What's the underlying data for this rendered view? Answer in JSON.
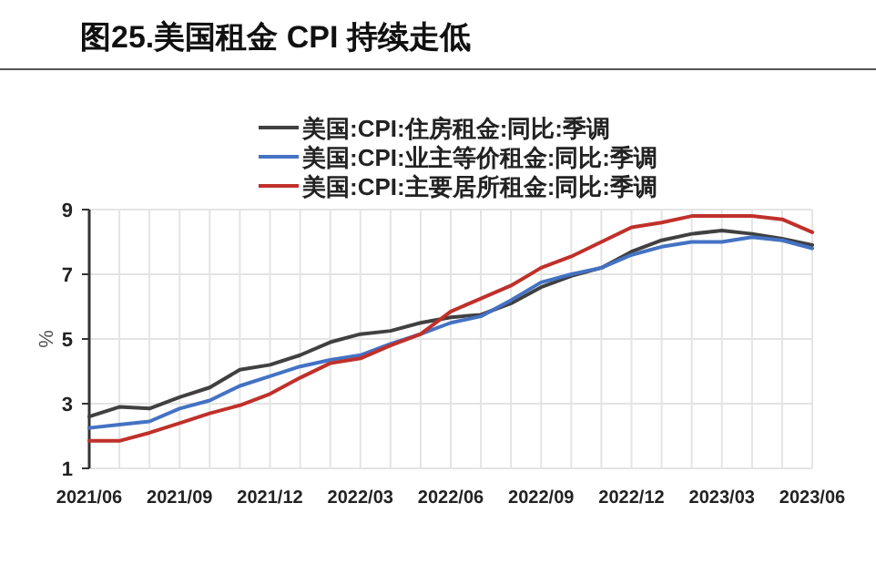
{
  "chart_data": {
    "type": "line",
    "title": "图25.美国租金 CPI 持续走低",
    "ylabel": "%",
    "categories": [
      "2021/06",
      null,
      null,
      "2021/09",
      null,
      null,
      "2021/12",
      null,
      null,
      "2022/03",
      null,
      null,
      "2022/06",
      null,
      null,
      "2022/09",
      null,
      null,
      "2022/12",
      null,
      null,
      "2023/03",
      null,
      null,
      "2023/06"
    ],
    "series": [
      {
        "name": "美国:CPI:住房租金:同比:季调",
        "color": "#404040",
        "values": [
          2.6,
          2.9,
          2.85,
          3.2,
          3.5,
          4.05,
          4.2,
          4.5,
          4.9,
          5.15,
          5.25,
          5.5,
          5.67,
          5.75,
          6.1,
          6.6,
          6.95,
          7.2,
          7.7,
          8.05,
          8.25,
          8.35,
          8.25,
          8.1,
          7.9
        ]
      },
      {
        "name": "美国:CPI:业主等价租金:同比:季调",
        "color": "#4472c4",
        "values": [
          2.25,
          2.35,
          2.45,
          2.85,
          3.1,
          3.55,
          3.85,
          4.15,
          4.35,
          4.5,
          4.85,
          5.15,
          5.5,
          5.7,
          6.2,
          6.75,
          7.0,
          7.2,
          7.6,
          7.85,
          8.0,
          8.0,
          8.15,
          8.05,
          7.8
        ]
      },
      {
        "name": "美国:CPI:主要居所租金:同比:季调",
        "color": "#c0302a",
        "values": [
          1.85,
          1.85,
          2.1,
          2.4,
          2.7,
          2.95,
          3.3,
          3.8,
          4.25,
          4.4,
          4.8,
          5.15,
          5.85,
          6.25,
          6.65,
          7.2,
          7.55,
          8.0,
          8.45,
          8.6,
          8.8,
          8.8,
          8.8,
          8.7,
          8.3
        ]
      }
    ],
    "ylim": [
      1,
      9
    ],
    "yticks": [
      1,
      3,
      5,
      7,
      9
    ],
    "grid": true,
    "legend": "top",
    "marker": "none",
    "line_style": "solid"
  }
}
